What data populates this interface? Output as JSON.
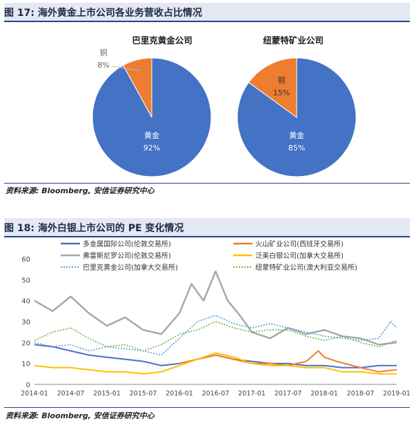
{
  "fig17": {
    "title": "图 17:  海外黄金上市公司各业务营收占比情况",
    "source": "资料来源:  Bloomberg,  安信证券研究中心"
  },
  "fig18": {
    "title": "图 18:  海外白银上市公司的 PE 变化情况",
    "source": "资料来源:  Bloomberg,  安信证券研究中心"
  },
  "colors": {
    "blue": "#4472c4",
    "orange": "#ed7d31",
    "gray": "#a5a5a5",
    "gold": "#ffc000",
    "lightblue": "#5b9bd5",
    "green": "#70ad47",
    "header_bg": "#e3e8f3",
    "header_rule": "#24418a"
  },
  "chart_data": [
    {
      "type": "pie",
      "title": "巴里克黄金公司",
      "slices": [
        {
          "label": "黄金",
          "value": 92,
          "pct_text": "92%",
          "color": "#4472c4"
        },
        {
          "label": "铜",
          "value": 8,
          "pct_text": "8%",
          "color": "#ed7d31"
        }
      ]
    },
    {
      "type": "pie",
      "title": "纽蒙特矿业公司",
      "slices": [
        {
          "label": "黄金",
          "value": 85,
          "pct_text": "85%",
          "color": "#4472c4"
        },
        {
          "label": "铜",
          "value": 15,
          "pct_text": "15%",
          "color": "#ed7d31"
        }
      ]
    },
    {
      "type": "line",
      "ylim": [
        0,
        60
      ],
      "yticks": [
        "0",
        "10",
        "20",
        "30",
        "40",
        "50",
        "60"
      ],
      "xlim": [
        "2014-01",
        "2019-01"
      ],
      "xticks": [
        "2014-01",
        "2014-07",
        "2015-01",
        "2015-07",
        "2016-01",
        "2016-07",
        "2017-01",
        "2017-07",
        "2018-01",
        "2018-07",
        "2019-01"
      ],
      "grid": false,
      "legend": "top",
      "series": [
        {
          "name": "多金属国际公司(伦敦交易所)",
          "color": "#4472c4",
          "dash": "solid",
          "width": 2,
          "x": [
            "2014-01",
            "2014-04",
            "2014-07",
            "2014-10",
            "2015-01",
            "2015-04",
            "2015-07",
            "2015-10",
            "2016-01",
            "2016-04",
            "2016-07",
            "2016-10",
            "2017-01",
            "2017-04",
            "2017-07",
            "2017-10",
            "2018-01",
            "2018-04",
            "2018-07",
            "2018-10",
            "2019-01"
          ],
          "y": [
            19,
            18,
            16,
            14,
            13,
            12,
            11,
            9,
            10,
            12,
            14,
            12,
            11,
            10,
            10,
            9,
            9,
            8,
            8,
            9,
            9
          ]
        },
        {
          "name": "火山矿业公司(西班牙交易所)",
          "color": "#ed7d31",
          "dash": "solid",
          "width": 2,
          "x": [
            "2016-01",
            "2016-04",
            "2016-07",
            "2016-10",
            "2017-01",
            "2017-04",
            "2017-07",
            "2017-10",
            "2017-12",
            "2018-01",
            "2018-03",
            "2018-07",
            "2018-10",
            "2019-01"
          ],
          "y": [
            10,
            12,
            14,
            12,
            10,
            10,
            9,
            11,
            16,
            13,
            11,
            8,
            6,
            7
          ]
        },
        {
          "name": "弗雷斯尼罗公司(伦敦交易所)",
          "color": "#a5a5a5",
          "dash": "solid",
          "width": 2.4,
          "x": [
            "2014-01",
            "2014-04",
            "2014-07",
            "2014-10",
            "2015-01",
            "2015-04",
            "2015-07",
            "2015-10",
            "2016-01",
            "2016-03",
            "2016-05",
            "2016-07",
            "2016-09",
            "2016-11",
            "2017-01",
            "2017-04",
            "2017-07",
            "2017-10",
            "2018-01",
            "2018-04",
            "2018-07",
            "2018-10",
            "2019-01"
          ],
          "y": [
            40,
            35,
            42,
            34,
            28,
            32,
            26,
            24,
            34,
            48,
            40,
            54,
            40,
            33,
            25,
            22,
            27,
            24,
            26,
            23,
            22,
            19,
            20
          ]
        },
        {
          "name": "泛美白银公司(加拿大交易所)",
          "color": "#ffc000",
          "dash": "solid",
          "width": 2,
          "x": [
            "2014-01",
            "2014-04",
            "2014-07",
            "2014-10",
            "2015-01",
            "2015-04",
            "2015-07",
            "2015-10",
            "2016-01",
            "2016-04",
            "2016-07",
            "2016-10",
            "2017-01",
            "2017-04",
            "2017-07",
            "2017-10",
            "2018-01",
            "2018-04",
            "2018-07",
            "2018-10",
            "2019-01"
          ],
          "y": [
            9,
            8,
            8,
            7,
            6,
            6,
            5,
            6,
            9,
            12,
            15,
            13,
            10,
            9,
            9,
            8,
            8,
            6,
            6,
            5,
            5
          ]
        },
        {
          "name": "巴里克黄金公司(加拿大交易所)",
          "color": "#5b9bd5",
          "dash": "dot",
          "width": 1.6,
          "x": [
            "2014-01",
            "2014-04",
            "2014-07",
            "2014-10",
            "2015-01",
            "2015-04",
            "2015-07",
            "2015-10",
            "2016-01",
            "2016-04",
            "2016-07",
            "2016-10",
            "2017-01",
            "2017-04",
            "2017-07",
            "2017-10",
            "2018-01",
            "2018-04",
            "2018-07",
            "2018-10",
            "2018-12",
            "2019-01"
          ],
          "y": [
            20,
            18,
            19,
            16,
            18,
            17,
            16,
            14,
            22,
            30,
            33,
            29,
            27,
            29,
            27,
            25,
            23,
            22,
            21,
            22,
            30,
            27
          ]
        },
        {
          "name": "纽蒙特矿业公司(澳大利亚交易所)",
          "color": "#70ad47",
          "dash": "dot",
          "width": 1.6,
          "x": [
            "2014-01",
            "2014-04",
            "2014-07",
            "2014-10",
            "2015-01",
            "2015-04",
            "2015-07",
            "2015-10",
            "2016-01",
            "2016-04",
            "2016-07",
            "2016-10",
            "2017-01",
            "2017-04",
            "2017-07",
            "2017-10",
            "2018-01",
            "2018-04",
            "2018-07",
            "2018-10",
            "2019-01"
          ],
          "y": [
            21,
            25,
            27,
            22,
            18,
            19,
            16,
            19,
            24,
            26,
            30,
            27,
            25,
            26,
            26,
            23,
            21,
            23,
            20,
            18,
            21
          ]
        }
      ]
    }
  ]
}
